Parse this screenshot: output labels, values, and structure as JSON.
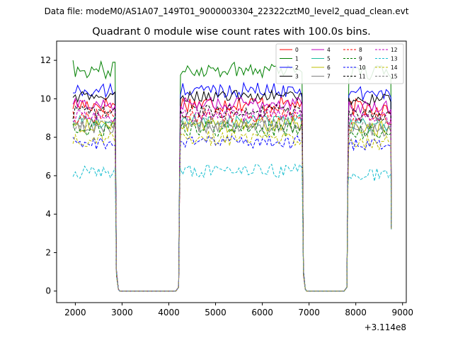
{
  "figure": {
    "suptitle": "Data file: modeM0/AS1A07_149T01_9000003304_22322cztM0_level2_quad_clean.evt"
  },
  "chart_data": {
    "type": "line",
    "title": "Quadrant 0 module wise count rates with 100.0s bins.",
    "xlabel": "",
    "ylabel": "",
    "x_offset_label": "+3.114e8",
    "xlim": [
      1600,
      9080
    ],
    "ylim": [
      -0.6,
      13.0
    ],
    "xticks": [
      2000,
      3000,
      4000,
      5000,
      6000,
      7000,
      8000,
      9000
    ],
    "yticks": [
      0,
      2,
      4,
      6,
      8,
      10,
      12
    ],
    "grid": false,
    "legend_position": "top-right",
    "legend_columns": 4,
    "segments": [
      [
        1950,
        2850
      ],
      [
        4250,
        6850
      ],
      [
        7850,
        8750
      ]
    ],
    "gaps": [
      [
        2950,
        4150
      ],
      [
        6950,
        7750
      ]
    ],
    "series": [
      {
        "name": "0",
        "color": "#ff0000",
        "dash": false,
        "level": 9.6,
        "noise": 0.45
      },
      {
        "name": "1",
        "color": "#008000",
        "dash": false,
        "level": 11.4,
        "noise": 0.45
      },
      {
        "name": "2",
        "color": "#0000ff",
        "dash": false,
        "level": 10.3,
        "noise": 0.4
      },
      {
        "name": "3",
        "color": "#000000",
        "dash": false,
        "level": 10.0,
        "noise": 0.3
      },
      {
        "name": "4",
        "color": "#bf00bf",
        "dash": false,
        "level": 9.6,
        "noise": 0.35
      },
      {
        "name": "5",
        "color": "#1abc9c",
        "dash": false,
        "level": 8.7,
        "noise": 0.35
      },
      {
        "name": "6",
        "color": "#bfbf00",
        "dash": false,
        "level": 8.5,
        "noise": 0.4
      },
      {
        "name": "7",
        "color": "#808080",
        "dash": false,
        "level": 8.4,
        "noise": 0.35
      },
      {
        "name": "8",
        "color": "#ff0000",
        "dash": true,
        "level": 9.0,
        "noise": 0.4
      },
      {
        "name": "9",
        "color": "#008000",
        "dash": true,
        "level": 8.3,
        "noise": 0.4
      },
      {
        "name": "10",
        "color": "#0000ff",
        "dash": true,
        "level": 7.6,
        "noise": 0.35
      },
      {
        "name": "11",
        "color": "#000000",
        "dash": true,
        "level": 9.2,
        "noise": 0.35
      },
      {
        "name": "12",
        "color": "#bf00bf",
        "dash": true,
        "level": 9.0,
        "noise": 0.35
      },
      {
        "name": "13",
        "color": "#17becf",
        "dash": true,
        "level": 6.1,
        "noise": 0.35
      },
      {
        "name": "14",
        "color": "#bfbf00",
        "dash": true,
        "level": 7.8,
        "noise": 0.4
      },
      {
        "name": "15",
        "color": "#808080",
        "dash": true,
        "level": 8.6,
        "noise": 0.35
      }
    ]
  }
}
